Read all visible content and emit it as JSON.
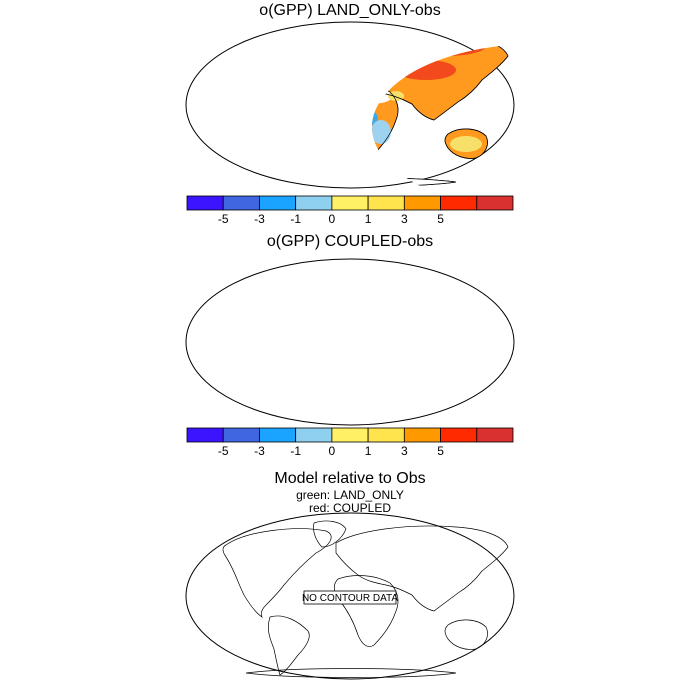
{
  "panels": [
    {
      "title": "o(GPP) LAND_ONLY-obs"
    },
    {
      "title": "o(GPP) COUPLED-obs"
    },
    {
      "title": "Model relative to Obs",
      "legend": [
        "green: LAND_ONLY",
        "red: COUPLED"
      ],
      "message": "NO CONTOUR DATA"
    }
  ],
  "colorbar": {
    "colors": [
      "#3d14ff",
      "#4066e0",
      "#1aa3ff",
      "#8fd0f0",
      "#fff066",
      "#ffe44d",
      "#ff9900",
      "#ff2a00",
      "#d93030"
    ],
    "labels": [
      "-5",
      "-3",
      "-1",
      "0",
      "1",
      "3",
      "5"
    ]
  },
  "palette": {
    "orange": "#ff9a1e",
    "yellow": "#f7e06a",
    "red": "#f24a1c",
    "blue": "#3fa8e8",
    "lightblue": "#9dd3f0",
    "white": "#ffffff"
  }
}
